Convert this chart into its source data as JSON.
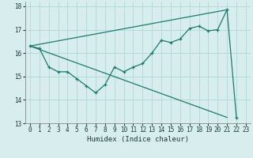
{
  "title": "",
  "xlabel": "Humidex (Indice chaleur)",
  "ylabel": "",
  "xlim": [
    -0.5,
    23.5
  ],
  "ylim": [
    13,
    18.2
  ],
  "yticks": [
    13,
    14,
    15,
    16,
    17,
    18
  ],
  "xticks": [
    0,
    1,
    2,
    3,
    4,
    5,
    6,
    7,
    8,
    9,
    10,
    11,
    12,
    13,
    14,
    15,
    16,
    17,
    18,
    19,
    20,
    21,
    22,
    23
  ],
  "bg_color": "#d8eeee",
  "line_color": "#1a7a6e",
  "grid_color": "#b0d8d8",
  "line1_x": [
    0,
    1,
    2,
    3,
    4,
    5,
    6,
    7,
    8,
    9,
    10,
    11,
    12,
    13,
    14,
    15,
    16,
    17,
    18,
    19,
    20,
    21,
    22
  ],
  "line1_y": [
    16.3,
    16.2,
    15.4,
    15.2,
    15.2,
    14.9,
    14.6,
    14.3,
    14.65,
    15.4,
    15.2,
    15.4,
    15.55,
    16.0,
    16.55,
    16.45,
    16.6,
    17.05,
    17.15,
    16.95,
    17.0,
    17.85,
    13.25
  ],
  "line2_x": [
    0,
    21
  ],
  "line2_y": [
    16.3,
    13.25
  ],
  "line3_x": [
    0,
    21
  ],
  "line3_y": [
    16.3,
    17.85
  ],
  "xlabel_fontsize": 6.5,
  "tick_fontsize": 5.5
}
